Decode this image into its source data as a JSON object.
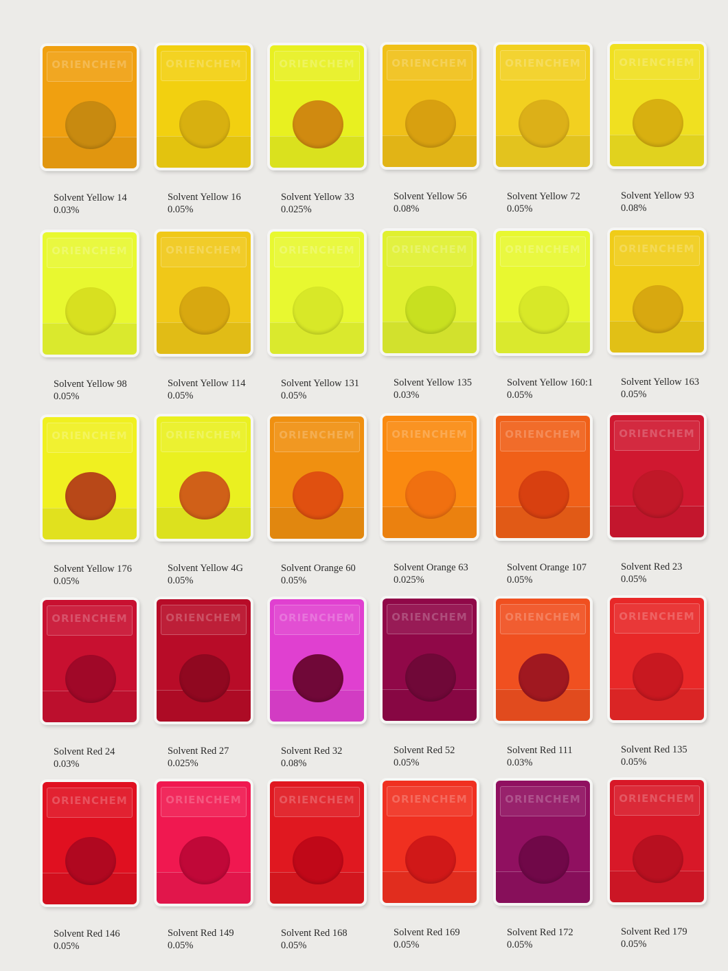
{
  "brand": "ORIENCHEM",
  "swatches": [
    {
      "name": "Solvent Yellow 14",
      "concentration": "0.03%",
      "color": "#f0a010",
      "center_color": "#c88a10"
    },
    {
      "name": "Solvent Yellow 16",
      "concentration": "0.05%",
      "color": "#f2d010",
      "center_color": "#d8b010"
    },
    {
      "name": "Solvent Yellow 33",
      "concentration": "0.025%",
      "color": "#e8f020",
      "center_color": "#d08a10"
    },
    {
      "name": "Solvent Yellow 56",
      "concentration": "0.08%",
      "color": "#f0c018",
      "center_color": "#d8a010"
    },
    {
      "name": "Solvent Yellow 72",
      "concentration": "0.05%",
      "color": "#f2d020",
      "center_color": "#dcb018"
    },
    {
      "name": "Solvent Yellow 93",
      "concentration": "0.08%",
      "color": "#f0e020",
      "center_color": "#d8b010"
    },
    {
      "name": "Solvent Yellow 98",
      "concentration": "0.05%",
      "color": "#e8f830",
      "center_color": "#d8e020"
    },
    {
      "name": "Solvent Yellow 114",
      "concentration": "0.05%",
      "color": "#f0c818",
      "center_color": "#d8a810"
    },
    {
      "name": "Solvent Yellow 131",
      "concentration": "0.05%",
      "color": "#e8f830",
      "center_color": "#d8e828"
    },
    {
      "name": "Solvent Yellow 135",
      "concentration": "0.03%",
      "color": "#e0f030",
      "center_color": "#c8e020"
    },
    {
      "name": "Solvent Yellow 160:1",
      "concentration": "0.05%",
      "color": "#e8f830",
      "center_color": "#d8e828"
    },
    {
      "name": "Solvent Yellow 163",
      "concentration": "0.05%",
      "color": "#f0cc18",
      "center_color": "#d8a810"
    },
    {
      "name": "Solvent Yellow 176",
      "concentration": "0.05%",
      "color": "#f0f020",
      "center_color": "#b84818"
    },
    {
      "name": "Solvent Yellow 4G",
      "concentration": "0.05%",
      "color": "#eaf020",
      "center_color": "#d06018"
    },
    {
      "name": "Solvent Orange 60",
      "concentration": "0.05%",
      "color": "#f09010",
      "center_color": "#e05010"
    },
    {
      "name": "Solvent Orange 63",
      "concentration": "0.025%",
      "color": "#fa8a10",
      "center_color": "#f07010"
    },
    {
      "name": "Solvent Orange 107",
      "concentration": "0.05%",
      "color": "#f06018",
      "center_color": "#d84010"
    },
    {
      "name": "Solvent Red 23",
      "concentration": "0.05%",
      "color": "#d01830",
      "center_color": "#c01828"
    },
    {
      "name": "Solvent Red 24",
      "concentration": "0.03%",
      "color": "#c81030",
      "center_color": "#a00828"
    },
    {
      "name": "Solvent Red 27",
      "concentration": "0.025%",
      "color": "#b80c28",
      "center_color": "#900820"
    },
    {
      "name": "Solvent Red 32",
      "concentration": "0.08%",
      "color": "#e040d0",
      "center_color": "#700838"
    },
    {
      "name": "Solvent Red 52",
      "concentration": "0.05%",
      "color": "#900848",
      "center_color": "#700838"
    },
    {
      "name": "Solvent Red 111",
      "concentration": "0.03%",
      "color": "#f05020",
      "center_color": "#a01820"
    },
    {
      "name": "Solvent Red 135",
      "concentration": "0.05%",
      "color": "#e82828",
      "center_color": "#c81820"
    },
    {
      "name": "Solvent Red 146",
      "concentration": "0.05%",
      "color": "#e01020",
      "center_color": "#b00820"
    },
    {
      "name": "Solvent Red 149",
      "concentration": "0.05%",
      "color": "#f01850",
      "center_color": "#c00838"
    },
    {
      "name": "Solvent Red 168",
      "concentration": "0.05%",
      "color": "#e01820",
      "center_color": "#c00818"
    },
    {
      "name": "Solvent Red 169",
      "concentration": "0.05%",
      "color": "#f03020",
      "center_color": "#d01818"
    },
    {
      "name": "Solvent Red 172",
      "concentration": "0.05%",
      "color": "#901060",
      "center_color": "#700848"
    },
    {
      "name": "Solvent Red 179",
      "concentration": "0.05%",
      "color": "#d81828",
      "center_color": "#b81020"
    }
  ]
}
